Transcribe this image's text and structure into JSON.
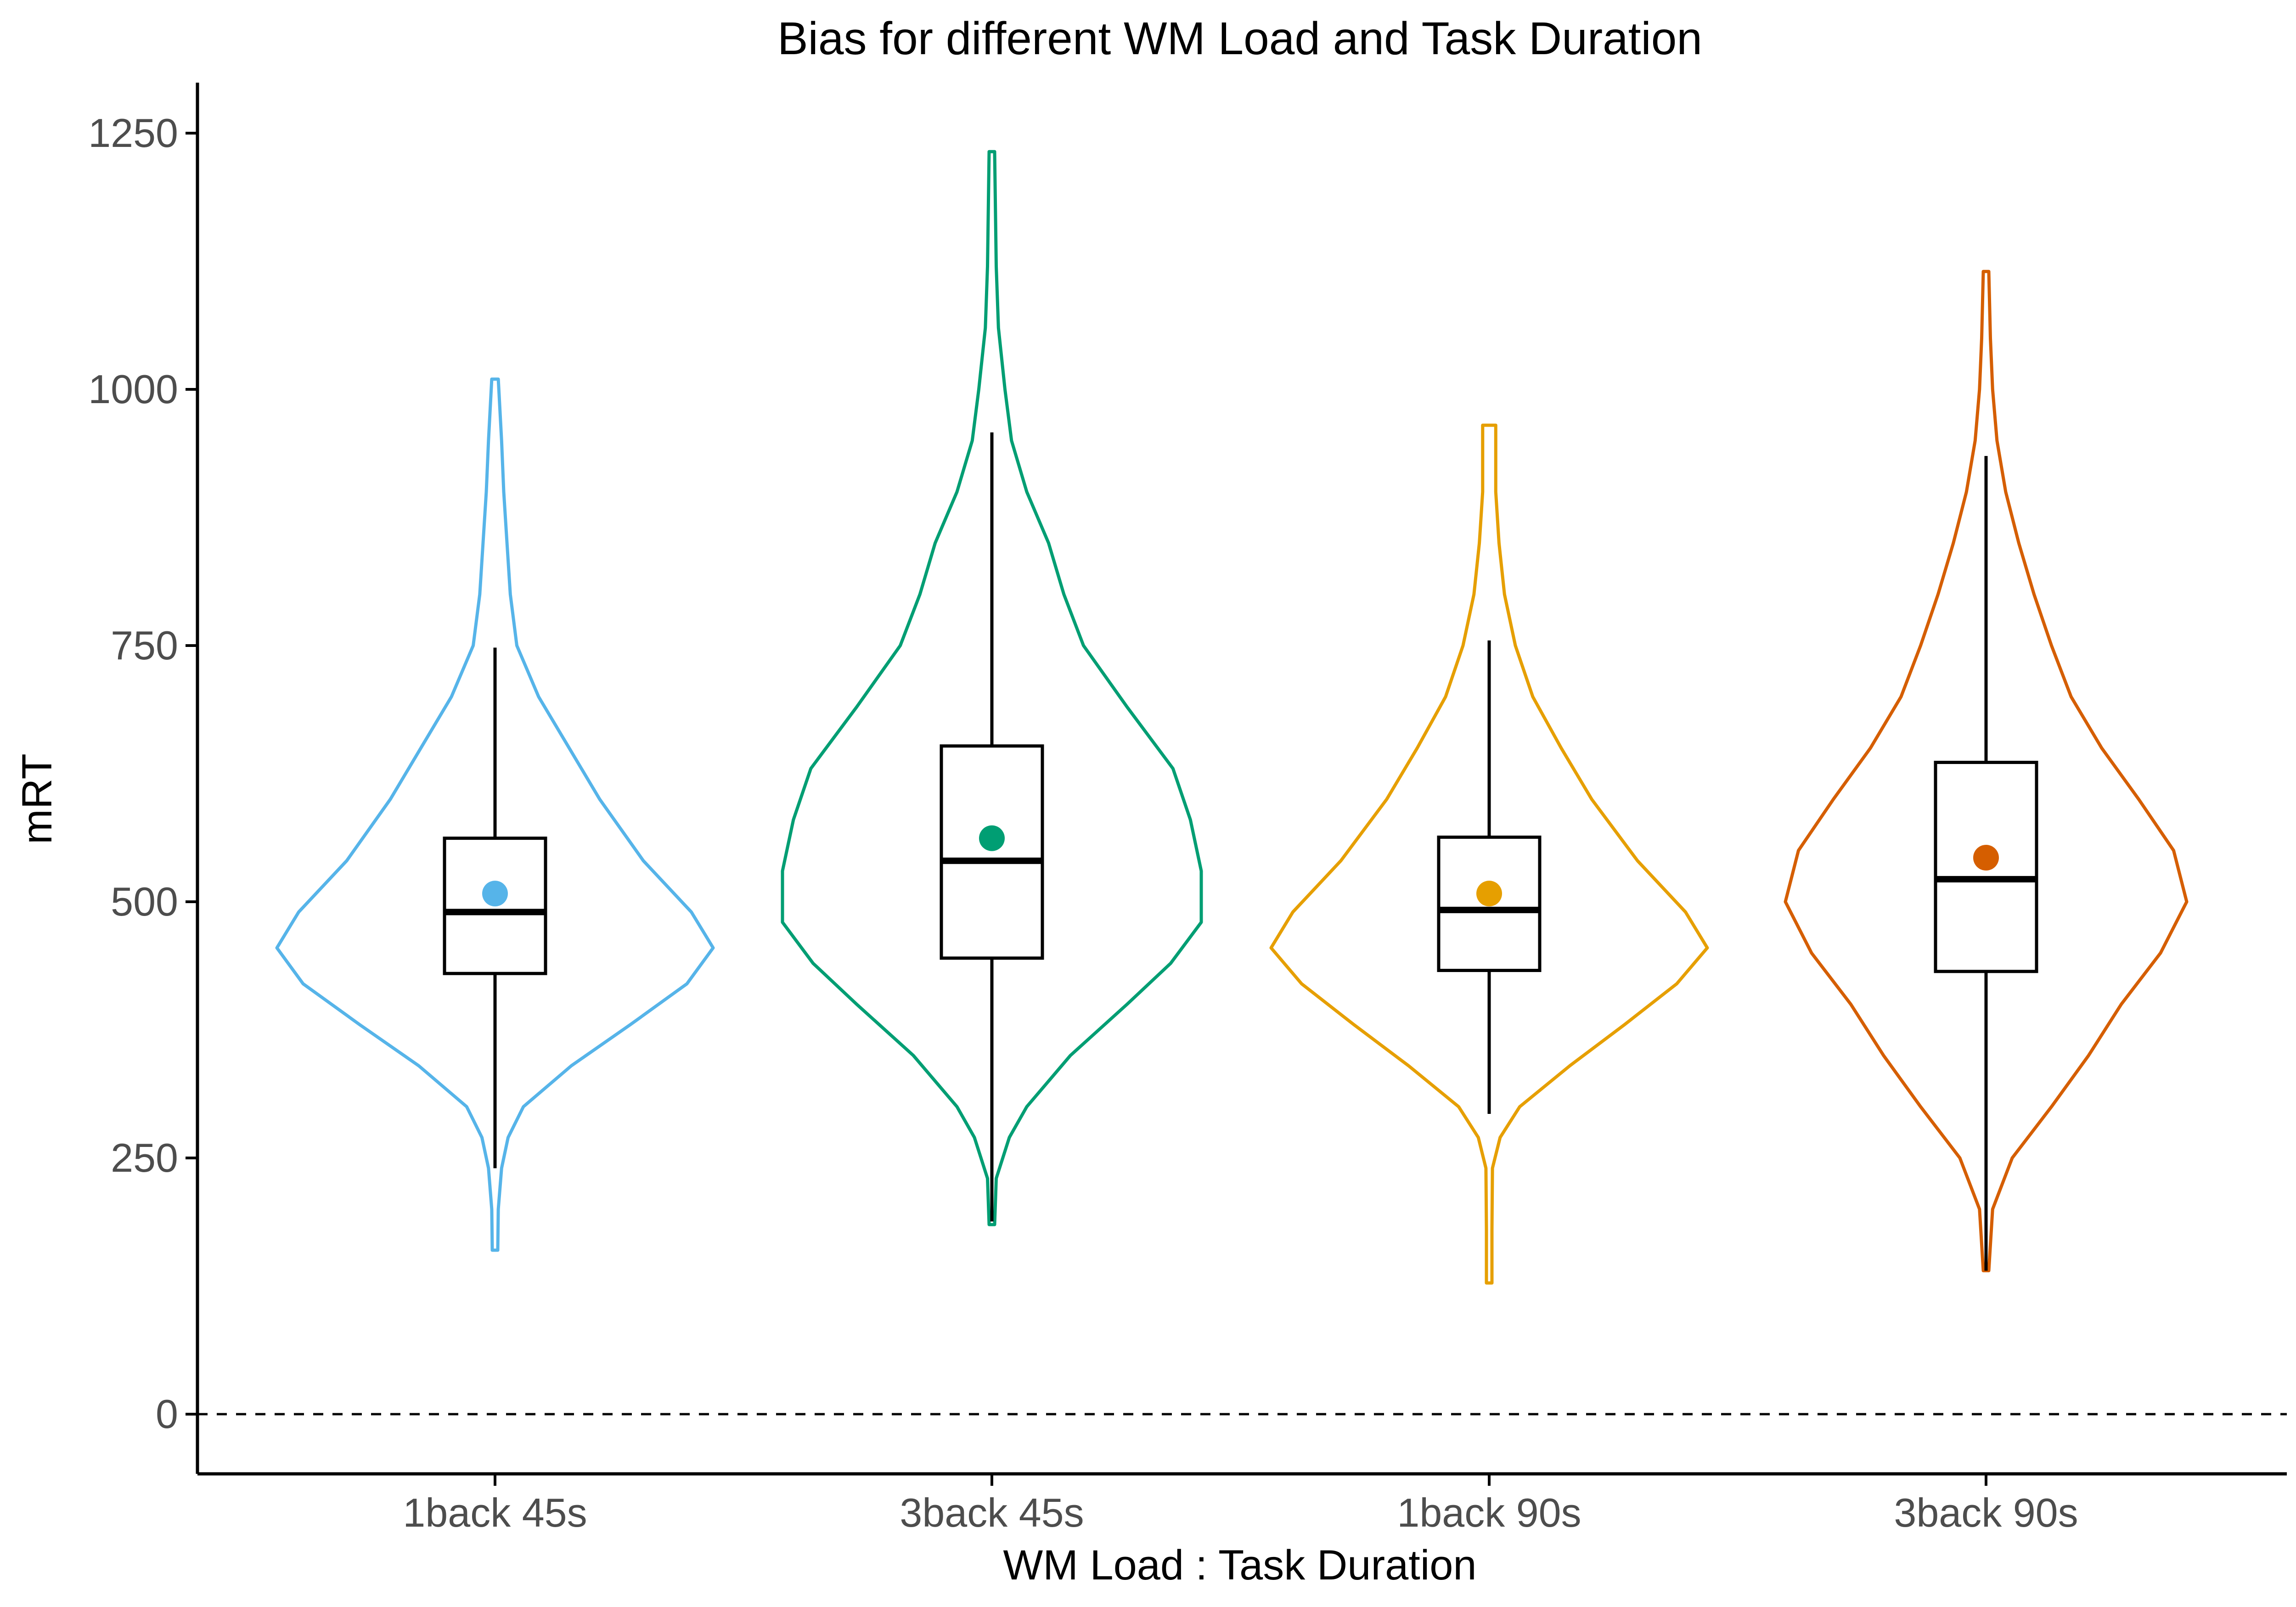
{
  "chart_data": {
    "type": "violin",
    "title": "Bias for different WM Load and Task Duration",
    "xlabel": "WM Load : Task Duration",
    "ylabel": "mRT",
    "ylim": [
      -60,
      1300
    ],
    "yticks": [
      0,
      250,
      500,
      750,
      1000,
      1250
    ],
    "reference_line": {
      "y": 0,
      "style": "dashed"
    },
    "grid": false,
    "legend": "none",
    "categories": [
      "1back 45s",
      "3back 45s",
      "1back 90s",
      "3back 90s"
    ],
    "series": [
      {
        "category": "1back 45s",
        "color": "#56B4E9",
        "violin_range": [
          160,
          1010
        ],
        "box": {
          "q1": 430,
          "median": 490,
          "q3": 562,
          "whisker_low": 240,
          "whisker_high": 748
        },
        "mean": 508,
        "density_profile": [
          [
            160,
            0.01
          ],
          [
            200,
            0.015
          ],
          [
            240,
            0.03
          ],
          [
            270,
            0.06
          ],
          [
            300,
            0.13
          ],
          [
            340,
            0.35
          ],
          [
            380,
            0.62
          ],
          [
            420,
            0.88
          ],
          [
            455,
            1.0
          ],
          [
            490,
            0.9
          ],
          [
            540,
            0.68
          ],
          [
            600,
            0.48
          ],
          [
            650,
            0.34
          ],
          [
            700,
            0.2
          ],
          [
            750,
            0.1
          ],
          [
            800,
            0.07
          ],
          [
            850,
            0.055
          ],
          [
            900,
            0.04
          ],
          [
            950,
            0.03
          ],
          [
            1010,
            0.015
          ]
        ]
      },
      {
        "category": "3back 45s",
        "color": "#009E73",
        "violin_range": [
          185,
          1232
        ],
        "box": {
          "q1": 445,
          "median": 540,
          "q3": 652,
          "whisker_low": 188,
          "whisker_high": 958
        },
        "mean": 562,
        "density_profile": [
          [
            185,
            0.01
          ],
          [
            230,
            0.02
          ],
          [
            270,
            0.08
          ],
          [
            300,
            0.16
          ],
          [
            350,
            0.36
          ],
          [
            400,
            0.62
          ],
          [
            440,
            0.82
          ],
          [
            480,
            0.96
          ],
          [
            530,
            0.96
          ],
          [
            580,
            0.91
          ],
          [
            630,
            0.83
          ],
          [
            690,
            0.62
          ],
          [
            750,
            0.42
          ],
          [
            800,
            0.33
          ],
          [
            850,
            0.26
          ],
          [
            900,
            0.16
          ],
          [
            950,
            0.09
          ],
          [
            1000,
            0.06
          ],
          [
            1060,
            0.03
          ],
          [
            1120,
            0.02
          ],
          [
            1232,
            0.005
          ]
        ]
      },
      {
        "category": "1back 90s",
        "color": "#E69F00",
        "violin_range": [
          128,
          965
        ],
        "box": {
          "q1": 433,
          "median": 492,
          "q3": 563,
          "whisker_low": 293,
          "whisker_high": 755
        },
        "mean": 508,
        "density_profile": [
          [
            128,
            0.01
          ],
          [
            180,
            0.01
          ],
          [
            240,
            0.015
          ],
          [
            270,
            0.05
          ],
          [
            300,
            0.14
          ],
          [
            340,
            0.37
          ],
          [
            380,
            0.62
          ],
          [
            420,
            0.86
          ],
          [
            455,
            1.0
          ],
          [
            490,
            0.9
          ],
          [
            540,
            0.68
          ],
          [
            600,
            0.47
          ],
          [
            650,
            0.33
          ],
          [
            700,
            0.2
          ],
          [
            750,
            0.12
          ],
          [
            800,
            0.07
          ],
          [
            850,
            0.045
          ],
          [
            900,
            0.03
          ],
          [
            965,
            0.03
          ]
        ]
      },
      {
        "category": "3back 90s",
        "color": "#D55E00",
        "violin_range": [
          140,
          1115
        ],
        "box": {
          "q1": 432,
          "median": 522,
          "q3": 636,
          "whisker_low": 140,
          "whisker_high": 935
        },
        "mean": 543,
        "density_profile": [
          [
            140,
            0.01
          ],
          [
            200,
            0.03
          ],
          [
            250,
            0.12
          ],
          [
            300,
            0.3
          ],
          [
            350,
            0.47
          ],
          [
            400,
            0.62
          ],
          [
            450,
            0.8
          ],
          [
            500,
            0.92
          ],
          [
            550,
            0.86
          ],
          [
            600,
            0.7
          ],
          [
            650,
            0.53
          ],
          [
            700,
            0.39
          ],
          [
            750,
            0.3
          ],
          [
            800,
            0.22
          ],
          [
            850,
            0.15
          ],
          [
            900,
            0.09
          ],
          [
            950,
            0.05
          ],
          [
            1000,
            0.03
          ],
          [
            1050,
            0.02
          ],
          [
            1115,
            0.01
          ]
        ]
      }
    ]
  }
}
